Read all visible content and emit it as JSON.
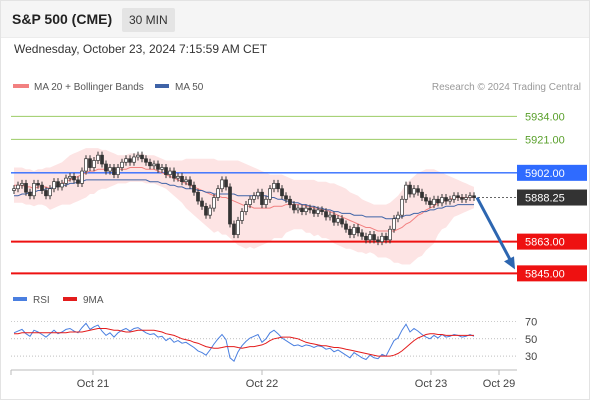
{
  "header": {
    "symbol": "S&P 500 (CME)",
    "timeframe": "30 MIN",
    "datetime": "Wednesday, October 23, 2024 7:15:59 AM CET"
  },
  "legend": {
    "ma20_label": "MA 20 + Bollinger Bands",
    "ma50_label": "MA 50",
    "credit": "Research © 2024 Trading Central",
    "rsi_label": "RSI",
    "rsi_ma_label": "9MA"
  },
  "colors": {
    "ma20": "#f28080",
    "ma50": "#3f63a7",
    "bands_fill": "#fde4e4",
    "resistance": "#9ccc65",
    "pivot": "#2f6bff",
    "support": "#ee1111",
    "current": "#333333",
    "rsi": "#4a7fe0",
    "rsi_ma": "#e31c1c",
    "arrow": "#2d66b0"
  },
  "chart_data": [
    {
      "type": "candlestick",
      "title": "S&P 500 (CME)",
      "timeframe": "30 MIN",
      "x_ticks": [
        "Oct 21",
        "Oct 22",
        "Oct 23",
        "Oct 29"
      ],
      "ylim": [
        5835,
        5945
      ],
      "current_price": "5888.25",
      "levels": [
        {
          "value": 5934.0,
          "label": "5934.00",
          "kind": "resistance"
        },
        {
          "value": 5921.0,
          "label": "5921.00",
          "kind": "resistance"
        },
        {
          "value": 5902.0,
          "label": "5902.00",
          "kind": "pivot"
        },
        {
          "value": 5863.0,
          "label": "5863.00",
          "kind": "support"
        },
        {
          "value": 5845.0,
          "label": "5845.00",
          "kind": "support"
        }
      ],
      "closes": [
        5893,
        5895,
        5896,
        5891,
        5889,
        5896,
        5895,
        5892,
        5889,
        5893,
        5897,
        5894,
        5896,
        5899,
        5900,
        5898,
        5896,
        5903,
        5910,
        5905,
        5909,
        5912,
        5907,
        5903,
        5905,
        5901,
        5905,
        5908,
        5910,
        5908,
        5911,
        5912,
        5910,
        5908,
        5906,
        5907,
        5904,
        5905,
        5901,
        5903,
        5899,
        5900,
        5897,
        5898,
        5895,
        5891,
        5886,
        5883,
        5878,
        5882,
        5888,
        5893,
        5898,
        5894,
        5873,
        5867,
        5875,
        5880,
        5884,
        5887,
        5889,
        5891,
        5884,
        5887,
        5893,
        5896,
        5893,
        5889,
        5887,
        5884,
        5881,
        5882,
        5880,
        5882,
        5881,
        5879,
        5881,
        5880,
        5877,
        5878,
        5874,
        5876,
        5873,
        5870,
        5867,
        5871,
        5868,
        5866,
        5864,
        5867,
        5864,
        5863,
        5866,
        5864,
        5870,
        5876,
        5878,
        5887,
        5895,
        5890,
        5893,
        5891,
        5888,
        5886,
        5884,
        5887,
        5885,
        5888,
        5886,
        5887,
        5889,
        5888,
        5887,
        5888,
        5889,
        5888
      ],
      "ma20": [
        5895,
        5895,
        5895,
        5894,
        5894,
        5893,
        5894,
        5894,
        5894,
        5893,
        5894,
        5895,
        5896,
        5897,
        5898,
        5899,
        5900,
        5901,
        5902,
        5903,
        5903,
        5904,
        5904,
        5904,
        5904,
        5904,
        5904,
        5904,
        5904,
        5905,
        5905,
        5905,
        5905,
        5904,
        5904,
        5904,
        5903,
        5902,
        5901,
        5900,
        5899,
        5898,
        5897,
        5896,
        5895,
        5894,
        5893,
        5892,
        5891,
        5890,
        5889,
        5889,
        5888,
        5888,
        5887,
        5886,
        5885,
        5884,
        5883,
        5883,
        5882,
        5882,
        5882,
        5882,
        5882,
        5883,
        5883,
        5883,
        5884,
        5884,
        5884,
        5884,
        5884,
        5883,
        5883,
        5882,
        5882,
        5881,
        5881,
        5880,
        5879,
        5878,
        5877,
        5876,
        5875,
        5874,
        5873,
        5872,
        5871,
        5871,
        5870,
        5869,
        5869,
        5869,
        5869,
        5869,
        5870,
        5871,
        5873,
        5874,
        5876,
        5878,
        5879,
        5881,
        5882,
        5883,
        5885,
        5886,
        5886,
        5887,
        5888,
        5888,
        5888,
        5888,
        5888,
        5888
      ],
      "bb_upper": [
        5905,
        5905,
        5905,
        5904,
        5904,
        5903,
        5904,
        5904,
        5905,
        5905,
        5906,
        5907,
        5908,
        5910,
        5912,
        5913,
        5914,
        5915,
        5916,
        5916,
        5916,
        5916,
        5915,
        5915,
        5914,
        5913,
        5912,
        5912,
        5912,
        5913,
        5913,
        5913,
        5913,
        5912,
        5912,
        5912,
        5911,
        5910,
        5909,
        5909,
        5909,
        5909,
        5909,
        5910,
        5910,
        5910,
        5910,
        5910,
        5910,
        5910,
        5910,
        5909,
        5909,
        5909,
        5909,
        5909,
        5909,
        5908,
        5907,
        5906,
        5905,
        5904,
        5903,
        5902,
        5901,
        5901,
        5901,
        5901,
        5900,
        5899,
        5898,
        5898,
        5898,
        5898,
        5898,
        5898,
        5897,
        5897,
        5897,
        5896,
        5896,
        5895,
        5894,
        5893,
        5891,
        5890,
        5889,
        5887,
        5886,
        5885,
        5884,
        5884,
        5884,
        5884,
        5885,
        5887,
        5889,
        5892,
        5896,
        5898,
        5900,
        5902,
        5903,
        5904,
        5904,
        5904,
        5903,
        5902,
        5901,
        5900,
        5899,
        5898,
        5897,
        5896,
        5895,
        5894
      ],
      "bb_lower": [
        5885,
        5885,
        5885,
        5884,
        5884,
        5883,
        5884,
        5884,
        5883,
        5881,
        5882,
        5883,
        5884,
        5884,
        5884,
        5885,
        5886,
        5887,
        5888,
        5890,
        5890,
        5892,
        5893,
        5893,
        5894,
        5895,
        5896,
        5896,
        5896,
        5897,
        5897,
        5897,
        5897,
        5896,
        5896,
        5896,
        5895,
        5894,
        5893,
        5891,
        5889,
        5887,
        5885,
        5882,
        5880,
        5878,
        5876,
        5874,
        5872,
        5870,
        5868,
        5869,
        5867,
        5867,
        5865,
        5863,
        5861,
        5860,
        5859,
        5860,
        5859,
        5860,
        5861,
        5862,
        5863,
        5865,
        5865,
        5865,
        5868,
        5869,
        5870,
        5870,
        5870,
        5868,
        5868,
        5866,
        5867,
        5865,
        5865,
        5864,
        5862,
        5861,
        5860,
        5859,
        5859,
        5858,
        5857,
        5857,
        5856,
        5857,
        5856,
        5854,
        5854,
        5854,
        5853,
        5851,
        5851,
        5850,
        5850,
        5850,
        5852,
        5854,
        5855,
        5858,
        5860,
        5862,
        5867,
        5870,
        5871,
        5874,
        5877,
        5878,
        5879,
        5880,
        5881,
        5882
      ],
      "ma50": [
        5889,
        5889,
        5890,
        5890,
        5891,
        5891,
        5892,
        5892,
        5893,
        5893,
        5894,
        5894,
        5895,
        5895,
        5896,
        5896,
        5897,
        5897,
        5898,
        5898,
        5898,
        5898,
        5898,
        5898,
        5898,
        5898,
        5898,
        5898,
        5898,
        5898,
        5898,
        5898,
        5898,
        5898,
        5897,
        5897,
        5897,
        5896,
        5896,
        5895,
        5895,
        5894,
        5894,
        5893,
        5893,
        5893,
        5892,
        5892,
        5891,
        5891,
        5890,
        5890,
        5890,
        5890,
        5890,
        5890,
        5889,
        5889,
        5889,
        5889,
        5889,
        5889,
        5889,
        5889,
        5888,
        5888,
        5887,
        5887,
        5886,
        5886,
        5885,
        5885,
        5884,
        5884,
        5883,
        5883,
        5882,
        5882,
        5881,
        5881,
        5880,
        5880,
        5879,
        5879,
        5879,
        5878,
        5878,
        5878,
        5877,
        5877,
        5877,
        5877,
        5877,
        5876,
        5876,
        5876,
        5877,
        5877,
        5878,
        5878,
        5879,
        5879,
        5880,
        5880,
        5881,
        5881,
        5882,
        5882,
        5883,
        5883,
        5883,
        5884,
        5884,
        5884,
        5884,
        5884
      ]
    },
    {
      "type": "line",
      "title": "RSI",
      "ylim": [
        15,
        80
      ],
      "y_ticks": [
        70,
        50,
        30
      ],
      "series": [
        {
          "name": "RSI",
          "values": [
            57,
            59,
            61,
            56,
            53,
            60,
            58,
            55,
            52,
            56,
            60,
            56,
            58,
            61,
            62,
            59,
            57,
            63,
            68,
            61,
            64,
            66,
            59,
            54,
            57,
            52,
            57,
            60,
            62,
            59,
            62,
            63,
            60,
            57,
            55,
            56,
            52,
            53,
            48,
            51,
            46,
            48,
            45,
            46,
            43,
            40,
            36,
            34,
            31,
            37,
            44,
            50,
            55,
            49,
            28,
            24,
            35,
            42,
            47,
            51,
            53,
            55,
            46,
            50,
            57,
            60,
            56,
            51,
            48,
            45,
            42,
            43,
            41,
            43,
            42,
            40,
            42,
            41,
            38,
            39,
            35,
            37,
            34,
            31,
            28,
            34,
            31,
            28,
            26,
            31,
            28,
            27,
            32,
            30,
            39,
            48,
            51,
            60,
            67,
            58,
            62,
            59,
            55,
            52,
            50,
            54,
            51,
            55,
            52,
            53,
            55,
            54,
            52,
            53,
            55,
            53
          ]
        },
        {
          "name": "9MA",
          "values": [
            56,
            56,
            57,
            57,
            57,
            57,
            57,
            57,
            57,
            57,
            57,
            57,
            57,
            57,
            58,
            58,
            58,
            58,
            59,
            60,
            61,
            62,
            62,
            62,
            61,
            60,
            60,
            59,
            58,
            58,
            59,
            60,
            60,
            60,
            60,
            60,
            59,
            58,
            56,
            55,
            54,
            52,
            50,
            49,
            48,
            46,
            45,
            43,
            41,
            40,
            39,
            39,
            40,
            41,
            41,
            41,
            40,
            39,
            40,
            41,
            41,
            42,
            43,
            45,
            48,
            50,
            51,
            52,
            52,
            52,
            51,
            50,
            48,
            46,
            45,
            44,
            43,
            42,
            42,
            41,
            40,
            40,
            39,
            38,
            37,
            36,
            35,
            34,
            33,
            32,
            31,
            30,
            30,
            30,
            30,
            31,
            33,
            36,
            40,
            44,
            48,
            51,
            53,
            55,
            56,
            56,
            55,
            55,
            54,
            54,
            54,
            54,
            54,
            54,
            54,
            54
          ]
        }
      ]
    }
  ]
}
